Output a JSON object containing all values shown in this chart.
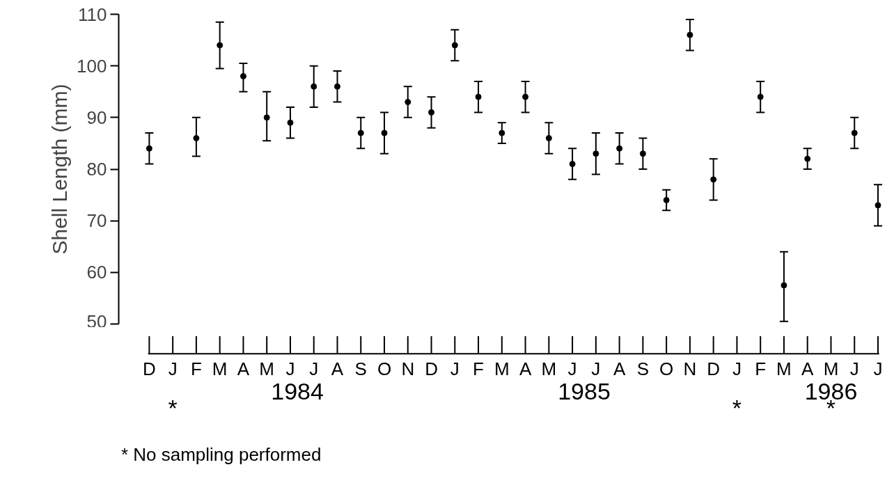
{
  "chart_data": {
    "type": "scatter",
    "ylabel": "Shell Length (mm)",
    "categories": [
      "D",
      "J",
      "F",
      "M",
      "A",
      "M",
      "J",
      "J",
      "A",
      "S",
      "O",
      "N",
      "D",
      "J",
      "F",
      "M",
      "A",
      "M",
      "J",
      "J",
      "A",
      "S",
      "O",
      "N",
      "D",
      "J",
      "F",
      "M",
      "A",
      "M",
      "J",
      "J"
    ],
    "values": [
      84,
      null,
      86,
      104,
      98,
      90,
      89,
      96,
      96,
      87,
      87,
      93,
      91,
      104,
      94,
      87,
      94,
      86,
      81,
      83,
      84,
      83,
      74,
      106,
      78,
      null,
      94,
      57.5,
      82,
      null,
      87,
      73
    ],
    "errors": [
      [
        81,
        87
      ],
      null,
      [
        82.5,
        90
      ],
      [
        99.5,
        108.5
      ],
      [
        95,
        100.5
      ],
      [
        85.5,
        95
      ],
      [
        86,
        92
      ],
      [
        92,
        100
      ],
      [
        93,
        99
      ],
      [
        84,
        90
      ],
      [
        83,
        91
      ],
      [
        90,
        96
      ],
      [
        88,
        94
      ],
      [
        101,
        107
      ],
      [
        91,
        97
      ],
      [
        85,
        89
      ],
      [
        91,
        97
      ],
      [
        83,
        89
      ],
      [
        78,
        84
      ],
      [
        79,
        87
      ],
      [
        81,
        87
      ],
      [
        80,
        86
      ],
      [
        72,
        76
      ],
      [
        103,
        109
      ],
      [
        74,
        82
      ],
      null,
      [
        91,
        97
      ],
      [
        50.5,
        64
      ],
      [
        80,
        84
      ],
      null,
      [
        84,
        90
      ],
      [
        69,
        77
      ]
    ],
    "color": "#000000",
    "marker": "circle",
    "grid": false,
    "ylim": [
      50,
      110
    ],
    "yticks": [
      50,
      60,
      70,
      80,
      90,
      100,
      110
    ],
    "annotations": [
      "1984",
      "1985",
      "1986",
      "*",
      "*",
      "*",
      "* No sampling performed"
    ]
  }
}
